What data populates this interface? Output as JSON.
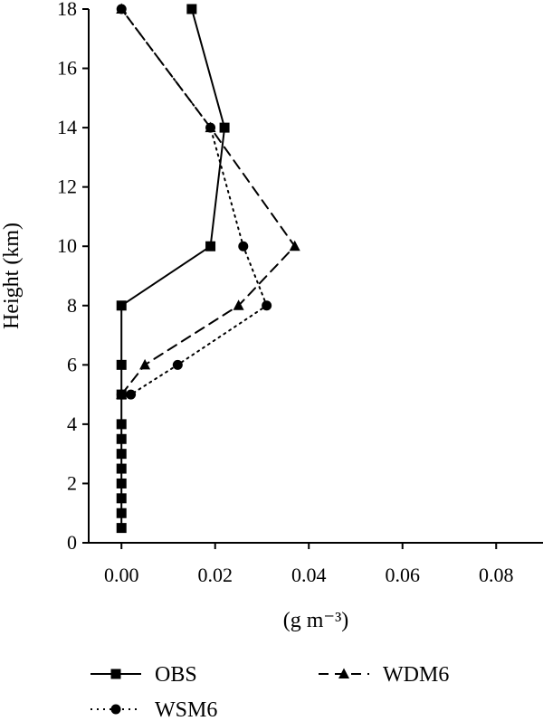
{
  "chart_data": {
    "type": "line",
    "title": "",
    "xlabel": "(g m⁻³)",
    "ylabel": "Height (km)",
    "xlim": [
      -0.007,
      0.09
    ],
    "ylim": [
      0,
      18
    ],
    "xticks": [
      "0.00",
      "0.02",
      "0.04",
      "0.06",
      "0.08"
    ],
    "yticks": [
      "0",
      "2",
      "4",
      "6",
      "8",
      "10",
      "12",
      "14",
      "16",
      "18"
    ],
    "xtick_values": [
      0.0,
      0.02,
      0.04,
      0.06,
      0.08
    ],
    "ytick_values": [
      0,
      2,
      4,
      6,
      8,
      10,
      12,
      14,
      16,
      18
    ],
    "grid": false,
    "legend_position": "bottom",
    "series": [
      {
        "name": "OBS",
        "style": "solid",
        "marker": "square",
        "color": "#000000",
        "points": [
          {
            "x": 0.0,
            "y": 0.5
          },
          {
            "x": 0.0,
            "y": 1.0
          },
          {
            "x": 0.0,
            "y": 1.5
          },
          {
            "x": 0.0,
            "y": 2.0
          },
          {
            "x": 0.0,
            "y": 2.5
          },
          {
            "x": 0.0,
            "y": 3.0
          },
          {
            "x": 0.0,
            "y": 3.5
          },
          {
            "x": 0.0,
            "y": 4.0
          },
          {
            "x": 0.0,
            "y": 5.0
          },
          {
            "x": 0.0,
            "y": 6.0
          },
          {
            "x": 0.0,
            "y": 8.0
          },
          {
            "x": 0.019,
            "y": 10.0
          },
          {
            "x": 0.022,
            "y": 14.0
          },
          {
            "x": 0.015,
            "y": 18.0
          }
        ]
      },
      {
        "name": "WDM6",
        "style": "dashed",
        "marker": "triangle",
        "color": "#000000",
        "points": [
          {
            "x": 0.0,
            "y": 5.0
          },
          {
            "x": 0.005,
            "y": 6.0
          },
          {
            "x": 0.025,
            "y": 8.0
          },
          {
            "x": 0.037,
            "y": 10.0
          },
          {
            "x": 0.019,
            "y": 14.0
          },
          {
            "x": 0.0,
            "y": 18.0
          }
        ]
      },
      {
        "name": "WSM6",
        "style": "dotted",
        "marker": "circle",
        "color": "#000000",
        "points": [
          {
            "x": 0.0,
            "y": 5.0
          },
          {
            "x": 0.002,
            "y": 5.0
          },
          {
            "x": 0.012,
            "y": 6.0
          },
          {
            "x": 0.031,
            "y": 8.0
          },
          {
            "x": 0.026,
            "y": 10.0
          },
          {
            "x": 0.019,
            "y": 14.0
          },
          {
            "x": 0.0,
            "y": 18.0
          }
        ]
      }
    ]
  },
  "legend": {
    "items": [
      {
        "label": "OBS",
        "style": "solid",
        "marker": "square"
      },
      {
        "label": "WDM6",
        "style": "dashed",
        "marker": "triangle"
      },
      {
        "label": "WSM6",
        "style": "dotted",
        "marker": "circle"
      }
    ]
  }
}
